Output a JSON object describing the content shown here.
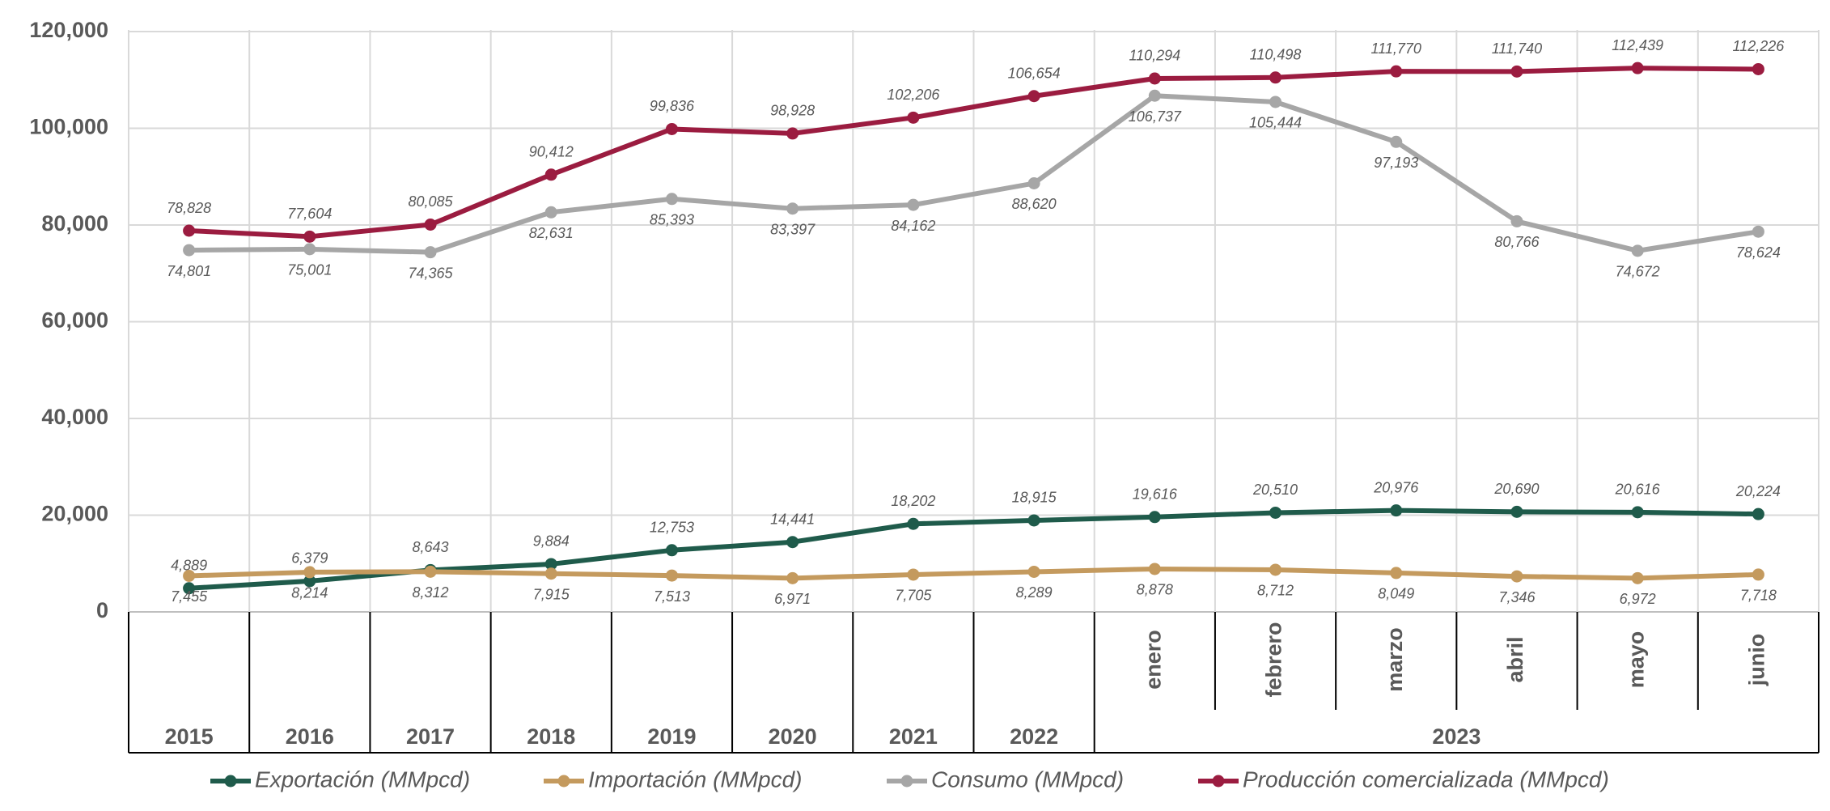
{
  "chart_data": {
    "type": "line",
    "categories": [
      "2015",
      "2016",
      "2017",
      "2018",
      "2019",
      "2020",
      "2021",
      "2022",
      "enero",
      "febrero",
      "marzo",
      "abril",
      "mayo",
      "junio"
    ],
    "groups": [
      {
        "label": "2023",
        "span": [
          8,
          13
        ]
      }
    ],
    "ylim": [
      0,
      120000
    ],
    "yticks": [
      0,
      {
        "value": 20000,
        "label": "20,000"
      },
      {
        "value": 40000,
        "label": "40,000"
      },
      {
        "value": 60000,
        "label": "60,000"
      },
      {
        "value": 80000,
        "label": "80,000"
      },
      {
        "value": 100000,
        "label": "100,000"
      },
      {
        "value": 120000,
        "label": "120,000"
      }
    ],
    "grid": true,
    "legend": "bottom",
    "series": [
      {
        "name": "Exportación (MMpcd)",
        "color": "#1f5b4b",
        "label_position": "above",
        "values": [
          4889,
          6379,
          8643,
          9884,
          12753,
          14441,
          18202,
          18915,
          19616,
          20510,
          20976,
          20690,
          20616,
          20224
        ],
        "value_labels": [
          "4,889",
          "6,379",
          "8,643",
          "9,884",
          "12,753",
          "14,441",
          "18,202",
          "18,915",
          "19,616",
          "20,510",
          "20,976",
          "20,690",
          "20,616",
          "20,224"
        ]
      },
      {
        "name": "Importación (MMpcd)",
        "color": "#c49a5e",
        "label_position": "below",
        "values": [
          7455,
          8214,
          8312,
          7915,
          7513,
          6971,
          7705,
          8289,
          8878,
          8712,
          8049,
          7346,
          6972,
          7718
        ],
        "value_labels": [
          "7,455",
          "8,214",
          "8,312",
          "7,915",
          "7,513",
          "6,971",
          "7,705",
          "8,289",
          "8,878",
          "8,712",
          "8,049",
          "7,346",
          "6,972",
          "7,718"
        ]
      },
      {
        "name": "Consumo (MMpcd)",
        "color": "#a6a6a6",
        "label_position": "below",
        "values": [
          74801,
          75001,
          74365,
          82631,
          85393,
          83397,
          84162,
          88620,
          106737,
          105444,
          97193,
          80766,
          74672,
          78624
        ],
        "value_labels": [
          "74,801",
          "75,001",
          "74,365",
          "82,631",
          "85,393",
          "83,397",
          "84,162",
          "88,620",
          "106,737",
          "105,444",
          "97,193",
          "80,766",
          "74,672",
          "78,624"
        ]
      },
      {
        "name": "Producción comercializada (MMpcd)",
        "color": "#9b1c40",
        "label_position": "above",
        "values": [
          78828,
          77604,
          80085,
          90412,
          99836,
          98928,
          102206,
          106654,
          110294,
          110498,
          111770,
          111740,
          112439,
          112226
        ],
        "value_labels": [
          "78,828",
          "77,604",
          "80,085",
          "90,412",
          "99,836",
          "98,928",
          "102,206",
          "106,654",
          "110,294",
          "110,498",
          "111,770",
          "111,740",
          "112,439",
          "112,226"
        ]
      }
    ]
  }
}
